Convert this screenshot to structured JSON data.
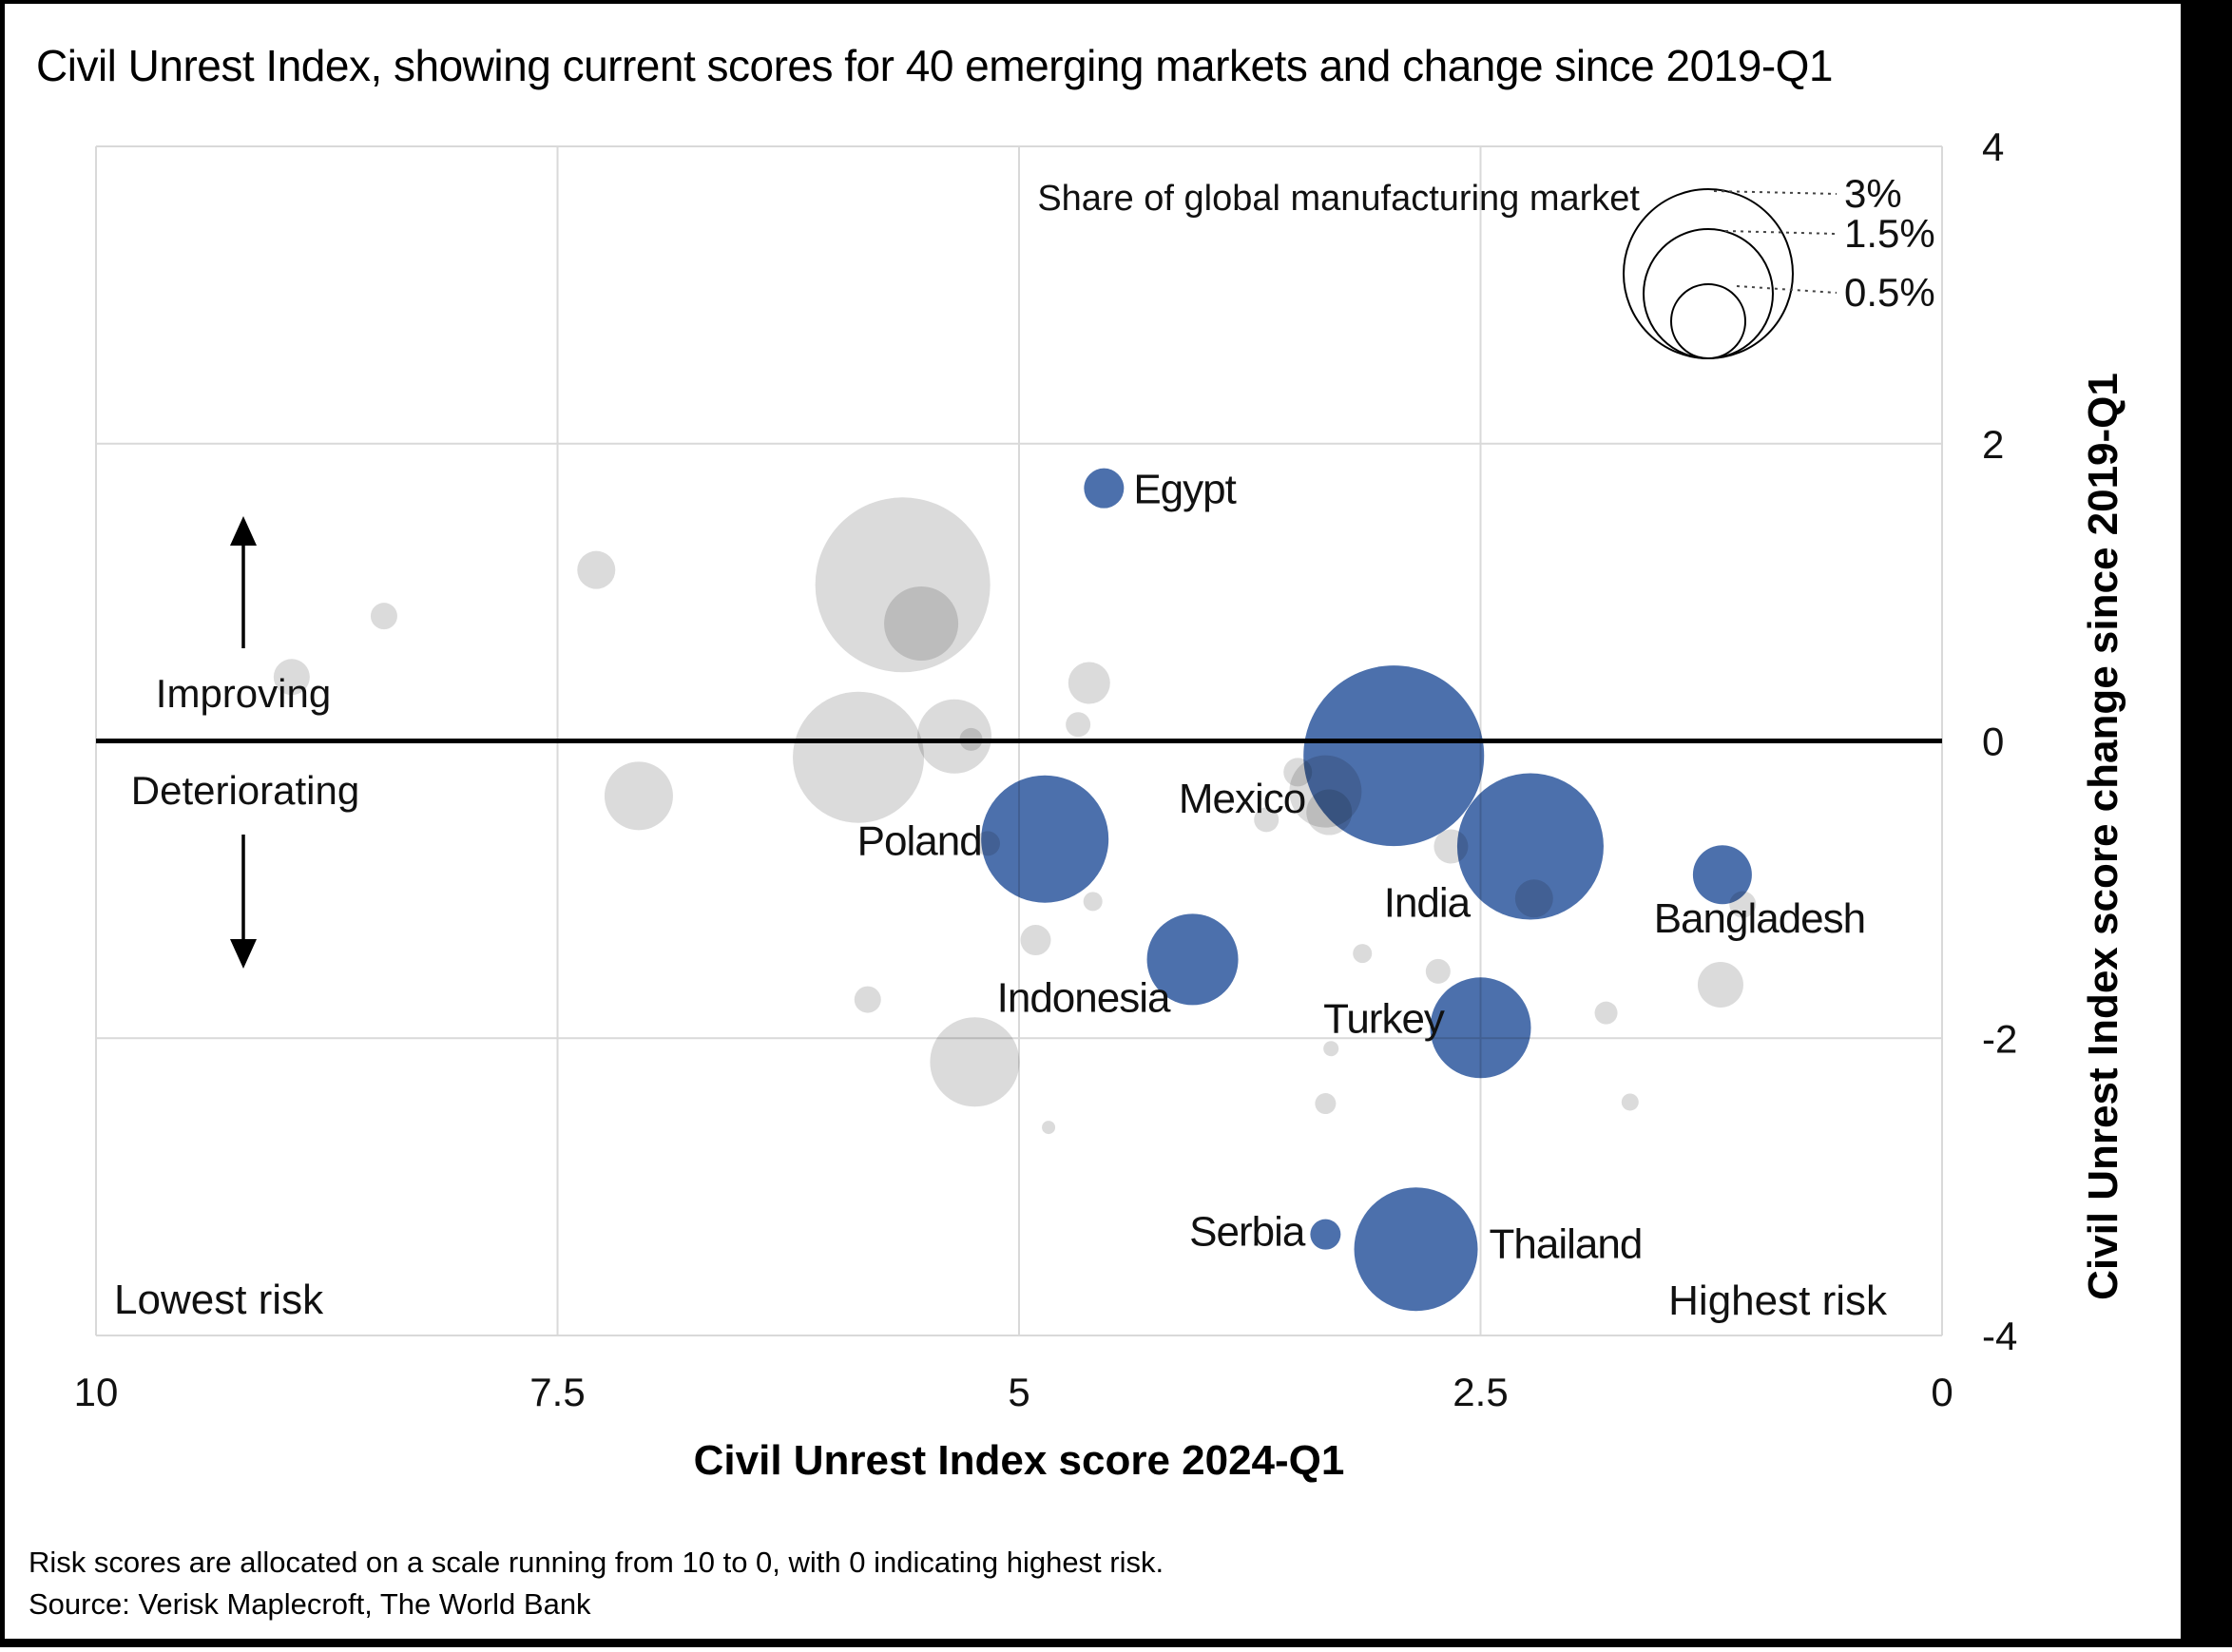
{
  "title": "Civil Unrest Index, showing current scores for 40 emerging markets and change since 2019-Q1",
  "footnotes": [
    "Risk scores are allocated on a scale running from 10 to 0, with 0 indicating highest risk.",
    "Source: Verisk Maplecroft, The World Bank"
  ],
  "colors": {
    "highlight_blue": "#4C70AC",
    "other_gray": "#DBDBDB",
    "gridline": "#D9D9D9",
    "zero_line": "#000000",
    "text": "#111111",
    "frame": "#000000"
  },
  "chart_data": {
    "type": "scatter",
    "title": "Civil Unrest Index, showing current scores for 40 emerging markets and change since 2019-Q1",
    "xlabel": "Civil Unrest Index score 2024-Q1",
    "ylabel": "Civil Unrest Index score change since 2019-Q1",
    "x_axis": {
      "tick_labels": [
        "10",
        "7.5",
        "5",
        "2.5",
        "0"
      ],
      "tick_values": [
        10,
        7.5,
        5,
        2.5,
        0
      ],
      "range": [
        10,
        0
      ],
      "reversed": true
    },
    "y_axis": {
      "tick_labels": [
        "4",
        "2",
        "0",
        "-2",
        "-4"
      ],
      "tick_values": [
        4,
        2,
        0,
        -2,
        -4
      ],
      "range": [
        -4,
        4
      ],
      "side": "right"
    },
    "zero_line_y": 0,
    "grid": true,
    "size_legend": {
      "title": "Share of global manufacturing market",
      "items": [
        {
          "label": "3%",
          "r": 89
        },
        {
          "label": "1.5%",
          "r": 68
        },
        {
          "label": "0.5%",
          "r": 39
        }
      ]
    },
    "annotations": {
      "improving": "Improving",
      "deteriorating": "Deteriorating",
      "lowest_risk": "Lowest risk",
      "highest_risk": "Highest risk"
    },
    "series": [
      {
        "name": "highlighted-markets",
        "color": "#4C70AC",
        "points": [
          {
            "label": "Egypt",
            "x": 4.54,
            "y": 1.7,
            "r": 21
          },
          {
            "label": "Mexico",
            "x": 2.97,
            "y": -0.1,
            "r": 95
          },
          {
            "label": "India",
            "x": 2.23,
            "y": -0.71,
            "r": 77
          },
          {
            "label": "Bangladesh",
            "x": 1.19,
            "y": -0.9,
            "r": 31
          },
          {
            "label": "Poland",
            "x": 4.86,
            "y": -0.66,
            "r": 67
          },
          {
            "label": "Indonesia",
            "x": 4.06,
            "y": -1.47,
            "r": 48
          },
          {
            "label": "Turkey",
            "x": 2.5,
            "y": -1.93,
            "r": 53
          },
          {
            "label": "Serbia",
            "x": 3.34,
            "y": -3.32,
            "r": 16
          },
          {
            "label": "Thailand",
            "x": 2.85,
            "y": -3.42,
            "r": 65
          }
        ]
      },
      {
        "name": "other-markets",
        "color": "#DBDBDB",
        "points": [
          {
            "x": 8.94,
            "y": 0.43,
            "r": 19
          },
          {
            "x": 8.44,
            "y": 0.84,
            "r": 14
          },
          {
            "x": 7.29,
            "y": 1.15,
            "r": 20
          },
          {
            "x": 7.06,
            "y": -0.37,
            "r": 36
          },
          {
            "x": 5.63,
            "y": 1.05,
            "r": 92
          },
          {
            "x": 5.53,
            "y": 0.79,
            "r": 39
          },
          {
            "x": 5.87,
            "y": -0.11,
            "r": 69
          },
          {
            "x": 5.35,
            "y": 0.03,
            "r": 39
          },
          {
            "x": 5.26,
            "y": 0.01,
            "r": 12
          },
          {
            "x": 5.17,
            "y": -0.69,
            "r": 13
          },
          {
            "x": 4.62,
            "y": 0.39,
            "r": 22
          },
          {
            "x": 4.68,
            "y": 0.11,
            "r": 13
          },
          {
            "x": 4.6,
            "y": -1.08,
            "r": 10
          },
          {
            "x": 4.91,
            "y": -1.34,
            "r": 16
          },
          {
            "x": 5.82,
            "y": -1.74,
            "r": 14
          },
          {
            "x": 5.24,
            "y": -2.16,
            "r": 47
          },
          {
            "x": 4.84,
            "y": -2.6,
            "r": 7
          },
          {
            "x": 3.49,
            "y": -0.21,
            "r": 15
          },
          {
            "x": 3.66,
            "y": -0.53,
            "r": 13
          },
          {
            "x": 3.34,
            "y": -0.34,
            "r": 38
          },
          {
            "x": 3.32,
            "y": -0.48,
            "r": 24
          },
          {
            "x": 3.14,
            "y": -1.43,
            "r": 10
          },
          {
            "x": 2.73,
            "y": -1.55,
            "r": 13
          },
          {
            "x": 2.66,
            "y": -0.71,
            "r": 18
          },
          {
            "x": 2.21,
            "y": -1.06,
            "r": 20
          },
          {
            "x": 3.31,
            "y": -2.07,
            "r": 8
          },
          {
            "x": 3.34,
            "y": -2.44,
            "r": 11
          },
          {
            "x": 1.82,
            "y": -1.83,
            "r": 12
          },
          {
            "x": 1.2,
            "y": -1.64,
            "r": 24
          },
          {
            "x": 1.08,
            "y": -1.1,
            "r": 14
          },
          {
            "x": 1.69,
            "y": -2.43,
            "r": 9
          }
        ]
      }
    ]
  }
}
